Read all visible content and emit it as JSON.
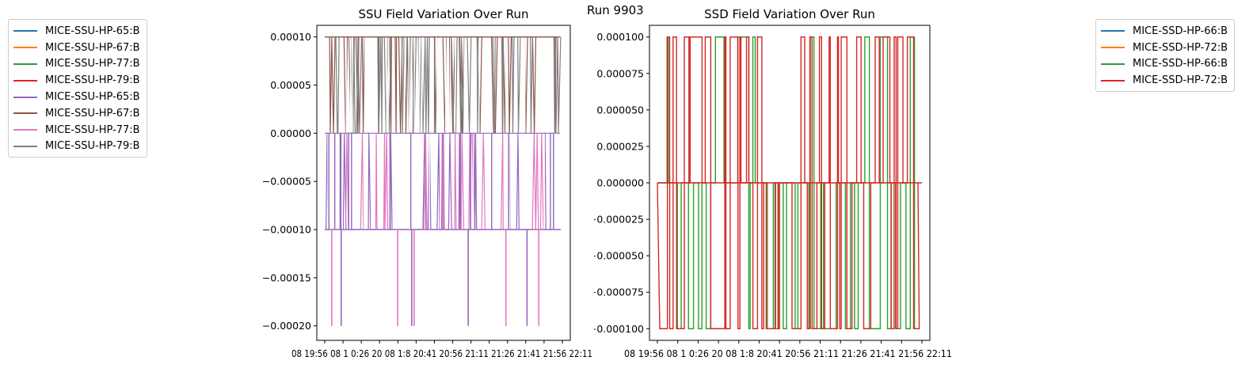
{
  "figure": {
    "suptitle": "Run 9903"
  },
  "chart_data": [
    {
      "type": "line",
      "title": "SSU Field Variation Over Run",
      "xlabel": "",
      "ylabel": "",
      "y_ticks": [
        "0.00010",
        "0.00005",
        "0.00000",
        "−0.00005",
        "−0.00010",
        "−0.00015",
        "−0.00020"
      ],
      "y_tick_values": [
        0.0001,
        5e-05,
        0.0,
        -5e-05,
        -0.0001,
        -0.00015,
        -0.0002
      ],
      "ylim": [
        -0.000215,
        0.000112
      ],
      "x_tick_text": "08 19:56 20:01 20:06 20:11 20:16 20:21 20:26 20:31 20:36 20:41 20:46 20:51 20:56 21:01 21:06 21:11 21:16 21:21 21:26 21:31 21:36 21:41 21:46 21:51 21:56 22:01 22:06 22:11",
      "x_tick_text_note_only_visible": true,
      "x_ticks_overlapping": "08 19:56 08 1 0:26 20 08 18 20:41 20:56 21:1 21:26 21:41 21:56 22:11",
      "legend_position": "outside-left",
      "series": [
        {
          "name": "MICE-SSU-HP-65:B",
          "color": "#1f77b4",
          "levels": [
            0.0
          ]
        },
        {
          "name": "MICE-SSU-HP-67:B",
          "color": "#ff7f0e",
          "levels": [
            0.0,
            0.0001
          ]
        },
        {
          "name": "MICE-SSU-HP-77:B",
          "color": "#2ca02c",
          "levels": [
            0.0
          ]
        },
        {
          "name": "MICE-SSU-HP-79:B",
          "color": "#d62728",
          "levels": [
            0.0
          ]
        },
        {
          "name": "MICE-SSU-HP-65:B",
          "color": "#9467bd",
          "levels": [
            -0.0001,
            -0.0002,
            0.0
          ]
        },
        {
          "name": "MICE-SSU-HP-67:B",
          "color": "#8c564b",
          "levels": [
            0.0,
            0.0001
          ]
        },
        {
          "name": "MICE-SSU-HP-77:B",
          "color": "#e377c2",
          "levels": [
            -0.0001,
            -0.0002,
            0.0
          ]
        },
        {
          "name": "MICE-SSU-HP-79:B",
          "color": "#7f7f7f",
          "levels": [
            0.0,
            0.0001
          ]
        }
      ],
      "spikes_to_min": [
        0.03,
        0.07,
        0.31,
        0.37,
        0.38,
        0.61,
        0.77,
        0.86,
        0.91
      ]
    },
    {
      "type": "line",
      "title": "SSD Field Variation Over Run",
      "xlabel": "",
      "ylabel": "",
      "y_ticks": [
        "0.000100",
        "0.000075",
        "0.000050",
        "0.000025",
        "0.000000",
        "−0.000025",
        "−0.000050",
        "−0.000075",
        "−0.000100"
      ],
      "y_tick_values": [
        0.0001,
        7.5e-05,
        5e-05,
        2.5e-05,
        0.0,
        -2.5e-05,
        -5e-05,
        -7.5e-05,
        -0.0001
      ],
      "ylim": [
        -0.000108,
        0.000108
      ],
      "legend_position": "outside-right",
      "series": [
        {
          "name": "MICE-SSD-HP-66:B",
          "color": "#1f77b4",
          "levels": [
            0.0
          ]
        },
        {
          "name": "MICE-SSD-HP-72:B",
          "color": "#ff7f0e",
          "levels": [
            0.0
          ]
        },
        {
          "name": "MICE-SSD-HP-66:B",
          "color": "#2ca02c",
          "levels": [
            -0.0001,
            0.0,
            0.0001
          ]
        },
        {
          "name": "MICE-SSD-HP-72:B",
          "color": "#d62728",
          "levels": [
            -0.0001,
            0.0,
            0.0001
          ]
        }
      ]
    }
  ],
  "x_tick_labels_left": "08 19:56 08 1 0:26 20 08 1:8 20:41 20:56 21:11 21:26 21:41 21:56 22:11",
  "x_tick_labels_right": "08 19:56 08 1 0:26 20 08 1:8 20:41 20:56 21:11 21:26 21:41 21:56 22:11",
  "x_tick_rendered": "08 19:56 20:01 20:06 20:11 20:16 20:21 20:26 20:31 20:36 20:41 20:46 20:51 20:56 21:01 21:06 21:11 21:16 21:21 21:26 21:31 21:36 21:41 21:46 21:51 21:56 22:01 22:06 22:11"
}
